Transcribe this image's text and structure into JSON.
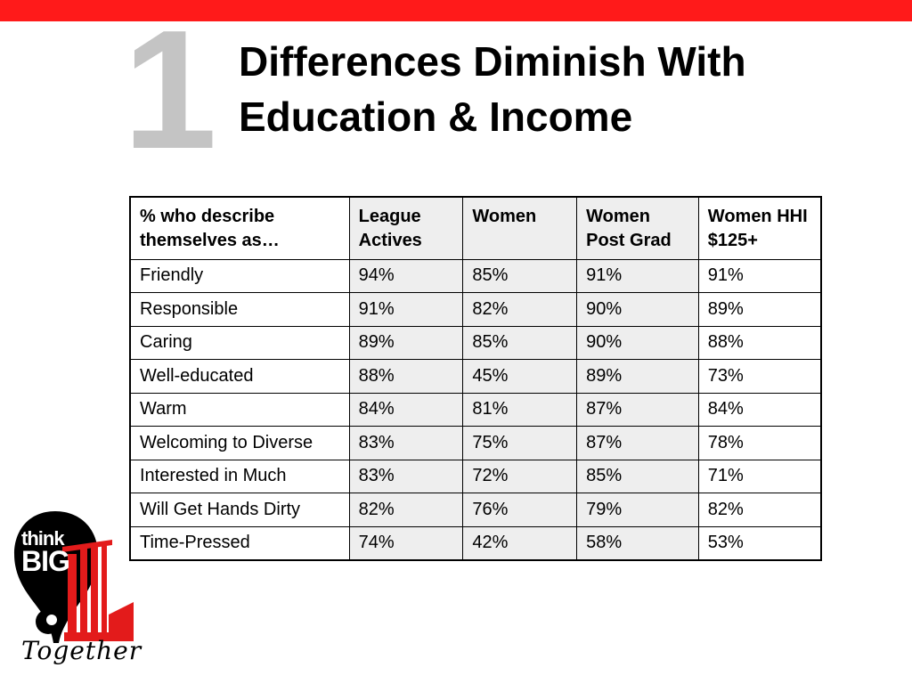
{
  "slide": {
    "number": "1",
    "title_line1": "Differences Diminish With",
    "title_line2": "Education & Income"
  },
  "table": {
    "headers": [
      "% who describe themselves as…",
      "League Actives",
      "Women",
      "Women Post Grad",
      "Women HHI $125+"
    ],
    "rows": [
      [
        "Friendly",
        "94%",
        "85%",
        "91%",
        "91%"
      ],
      [
        "Responsible",
        "91%",
        "82%",
        "90%",
        "89%"
      ],
      [
        "Caring",
        "89%",
        "85%",
        "90%",
        "88%"
      ],
      [
        "Well-educated",
        "88%",
        "45%",
        "89%",
        "73%"
      ],
      [
        "Warm",
        "84%",
        "81%",
        "87%",
        "84%"
      ],
      [
        "Welcoming to Diverse",
        "83%",
        "75%",
        "87%",
        "78%"
      ],
      [
        "Interested in Much",
        "83%",
        "72%",
        "85%",
        "71%"
      ],
      [
        "Will Get Hands Dirty",
        "82%",
        "76%",
        "79%",
        "82%"
      ],
      [
        "Time-Pressed",
        "74%",
        "42%",
        "58%",
        "53%"
      ]
    ]
  },
  "logo": {
    "line1": "think",
    "line2": "BIG",
    "tagline": "Together"
  },
  "colors": {
    "accent_red": "#ff1a1a",
    "number_gray": "#c4c4c4",
    "shaded_cell": "#eeeeee"
  }
}
